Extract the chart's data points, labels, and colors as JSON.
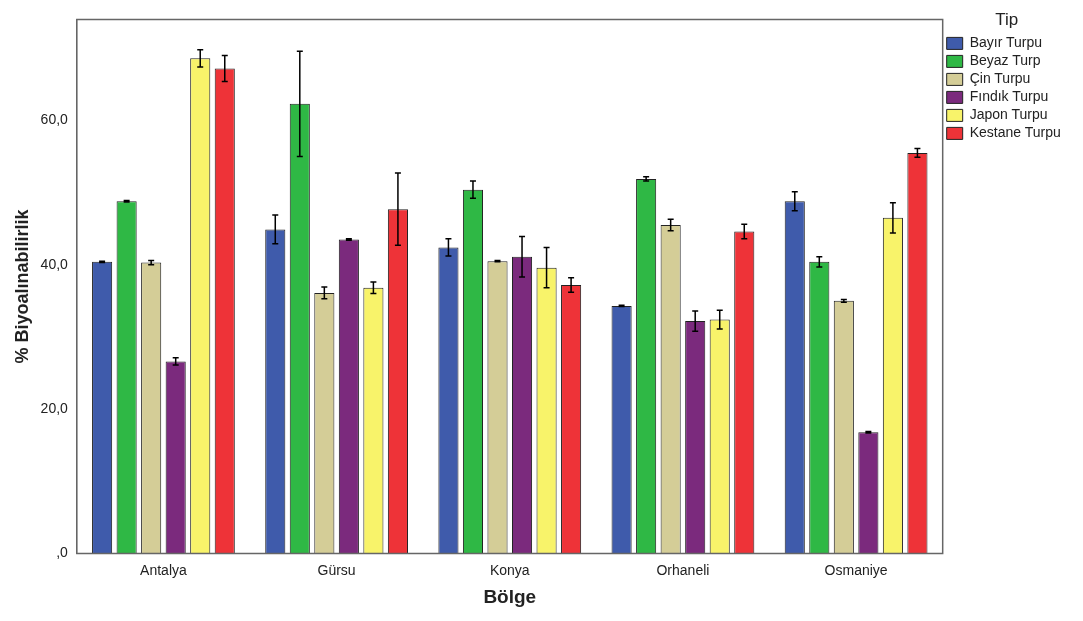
{
  "chart_data": {
    "type": "bar",
    "xlabel": "Bölge",
    "ylabel": "% Biyoalınabilirlik",
    "legend_title": "Tip",
    "legend": "top right",
    "grid": false,
    "categories": [
      "Antalya",
      "Gürsu",
      "Konya",
      "Orhaneli",
      "Osmaniye"
    ],
    "ylim": [
      0,
      74
    ],
    "yticks": [
      {
        "value": 0,
        "label": ",0"
      },
      {
        "value": 20,
        "label": "20,0"
      },
      {
        "value": 40,
        "label": "40,0"
      },
      {
        "value": 60,
        "label": "60,0"
      }
    ],
    "series": [
      {
        "name": "Bayır Turpu",
        "color": "#3f5bab",
        "values": [
          40.4,
          44.9,
          42.4,
          34.3,
          48.8
        ],
        "errors": [
          0.1,
          2,
          1.2,
          0.1,
          1.3
        ]
      },
      {
        "name": "Beyaz Turp",
        "color": "#2fb845",
        "values": [
          48.8,
          62.3,
          50.4,
          51.9,
          40.4
        ],
        "errors": [
          0.1,
          7.3,
          1.2,
          0.3,
          0.7
        ]
      },
      {
        "name": "Çin Turpu",
        "color": "#d4cd97",
        "values": [
          40.3,
          36.1,
          40.5,
          45.5,
          35.0
        ],
        "errors": [
          0.3,
          0.8,
          0.1,
          0.8,
          0.2
        ]
      },
      {
        "name": "Fındık Turpu",
        "color": "#7b2a7d",
        "values": [
          26.6,
          43.5,
          41.1,
          32.2,
          16.8
        ],
        "errors": [
          0.5,
          0.1,
          2.8,
          1.4,
          0.1
        ]
      },
      {
        "name": "Japon Turpu",
        "color": "#f8f36a",
        "values": [
          68.6,
          36.8,
          39.6,
          32.4,
          46.5
        ],
        "errors": [
          1.2,
          0.8,
          2.8,
          1.3,
          2.1
        ]
      },
      {
        "name": "Kestane Turpu",
        "color": "#ee3338",
        "values": [
          67.2,
          47.7,
          37.2,
          44.6,
          55.5
        ],
        "errors": [
          1.8,
          5,
          1,
          1,
          0.6
        ]
      }
    ]
  }
}
